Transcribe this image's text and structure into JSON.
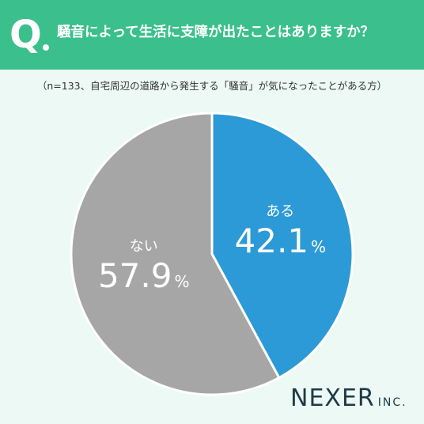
{
  "header": {
    "q_label": "Q",
    "question": "騒音によって生活に支障が出たことはありますか？"
  },
  "note": "（n=133、自宅周辺の道路から発生する「騒音」が気になったことがある方）",
  "chart_data": {
    "type": "pie",
    "categories": [
      "ある",
      "ない"
    ],
    "values": [
      42.1,
      57.9
    ],
    "unit": "%",
    "colors": [
      "#2b9ad6",
      "#a6a6a6"
    ],
    "start": "12 o'clock, clockwise"
  },
  "brand": {
    "main": "NEXER",
    "sub": "INC."
  }
}
